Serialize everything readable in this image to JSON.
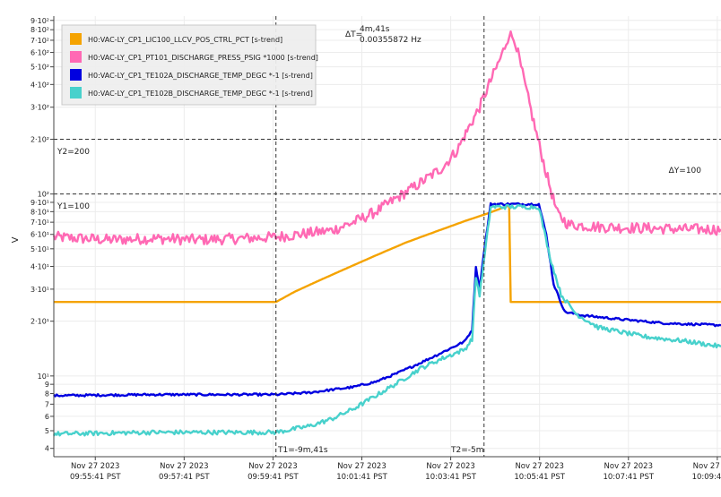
{
  "chart_data": {
    "type": "line",
    "ylabel": "V",
    "y_scale": "log",
    "ylim": [
      3.6,
      950
    ],
    "x_unit": "time (PST, 2023-11-27)",
    "xlim": [
      "09:54:45",
      "10:09:46"
    ],
    "y_ticks": [
      {
        "value": 4,
        "label": "4"
      },
      {
        "value": 5,
        "label": "5"
      },
      {
        "value": 6,
        "label": "6"
      },
      {
        "value": 7,
        "label": "7"
      },
      {
        "value": 8,
        "label": "8"
      },
      {
        "value": 9,
        "label": "9"
      },
      {
        "value": 10,
        "label": "10¹"
      },
      {
        "value": 20,
        "label": "2·10¹"
      },
      {
        "value": 30,
        "label": "3·10¹"
      },
      {
        "value": 40,
        "label": "4·10¹"
      },
      {
        "value": 50,
        "label": "5·10¹"
      },
      {
        "value": 60,
        "label": "6·10¹"
      },
      {
        "value": 70,
        "label": "7·10¹"
      },
      {
        "value": 80,
        "label": "8·10¹"
      },
      {
        "value": 90,
        "label": "9·10¹"
      },
      {
        "value": 100,
        "label": "10²"
      },
      {
        "value": 200,
        "label": "2·10²"
      },
      {
        "value": 300,
        "label": "3·10²"
      },
      {
        "value": 400,
        "label": "4·10²"
      },
      {
        "value": 500,
        "label": "5·10²"
      },
      {
        "value": 600,
        "label": "6·10²"
      },
      {
        "value": 700,
        "label": "7·10²"
      },
      {
        "value": 800,
        "label": "8·10²"
      },
      {
        "value": 900,
        "label": "9·10²"
      }
    ],
    "x_ticks": [
      {
        "time": "09:55:41",
        "date": "Nov 27 2023",
        "label": "09:55:41 PST"
      },
      {
        "time": "09:57:41",
        "date": "Nov 27 2023",
        "label": "09:57:41 PST"
      },
      {
        "time": "09:59:41",
        "date": "Nov 27 2023",
        "label": "09:59:41 PST"
      },
      {
        "time": "10:01:41",
        "date": "Nov 27 2023",
        "label": "10:01:41 PST"
      },
      {
        "time": "10:03:41",
        "date": "Nov 27 2023",
        "label": "10:03:41 PST"
      },
      {
        "time": "10:05:41",
        "date": "Nov 27 2023",
        "label": "10:05:41 PST"
      },
      {
        "time": "10:07:41",
        "date": "Nov 27 2023",
        "label": "10:07:41 PST"
      },
      {
        "time": "10:09:41",
        "date": "Nov 27 2023",
        "label": "10:09:41 PST"
      }
    ],
    "legend_position": "top-left",
    "series": [
      {
        "name": "H0:VAC-LY_CP1_LIC100_LLCV_POS_CTRL_PCT [s-trend]",
        "color": "#f5a300",
        "noise": 0,
        "points": [
          [
            "09:54:45",
            25.5
          ],
          [
            "09:59:45",
            25.5
          ],
          [
            "10:00:10",
            29
          ],
          [
            "10:00:40",
            33
          ],
          [
            "10:01:20",
            39
          ],
          [
            "10:02:00",
            46
          ],
          [
            "10:02:40",
            54
          ],
          [
            "10:03:20",
            62
          ],
          [
            "10:04:00",
            71
          ],
          [
            "10:04:30",
            78
          ],
          [
            "10:04:58",
            86
          ],
          [
            "10:05:00",
            86
          ],
          [
            "10:05:02",
            25.5
          ],
          [
            "10:09:46",
            25.5
          ]
        ]
      },
      {
        "name": "H0:VAC-LY_CP1_PT101_DISCHARGE_PRESS_PSIG *1000 [s-trend]",
        "color": "#ff69b4",
        "noise": 0.03,
        "points": [
          [
            "09:54:45",
            58
          ],
          [
            "09:56:00",
            56
          ],
          [
            "09:57:00",
            57
          ],
          [
            "09:58:00",
            56
          ],
          [
            "09:59:00",
            57
          ],
          [
            "09:59:45",
            58
          ],
          [
            "10:00:30",
            61
          ],
          [
            "10:01:00",
            63
          ],
          [
            "10:01:30",
            70
          ],
          [
            "10:02:00",
            80
          ],
          [
            "10:02:30",
            96
          ],
          [
            "10:03:00",
            115
          ],
          [
            "10:03:30",
            140
          ],
          [
            "10:03:50",
            175
          ],
          [
            "10:04:05",
            230
          ],
          [
            "10:04:20",
            300
          ],
          [
            "10:04:35",
            420
          ],
          [
            "10:04:50",
            580
          ],
          [
            "10:05:00",
            760
          ],
          [
            "10:05:08",
            700
          ],
          [
            "10:05:20",
            420
          ],
          [
            "10:05:35",
            230
          ],
          [
            "10:05:50",
            130
          ],
          [
            "10:06:05",
            78
          ],
          [
            "10:06:20",
            68
          ],
          [
            "10:07:00",
            66
          ],
          [
            "10:08:00",
            65
          ],
          [
            "10:09:00",
            64
          ],
          [
            "10:09:46",
            64
          ]
        ]
      },
      {
        "name": "H0:VAC-LY_CP1_TE102A_DISCHARGE_TEMP_DEGC *-1 [s-trend]",
        "color": "#0000e0",
        "noise": 0.006,
        "points": [
          [
            "09:54:45",
            7.8
          ],
          [
            "09:57:00",
            7.9
          ],
          [
            "09:59:45",
            7.9
          ],
          [
            "10:00:30",
            8.1
          ],
          [
            "10:01:30",
            8.7
          ],
          [
            "10:02:00",
            9.3
          ],
          [
            "10:02:30",
            10.4
          ],
          [
            "10:03:00",
            11.8
          ],
          [
            "10:03:30",
            13.5
          ],
          [
            "10:04:00",
            15.5
          ],
          [
            "10:04:10",
            18
          ],
          [
            "10:04:15",
            40
          ],
          [
            "10:04:20",
            30
          ],
          [
            "10:04:25",
            45
          ],
          [
            "10:04:35",
            88
          ],
          [
            "10:05:00",
            88
          ],
          [
            "10:05:30",
            88
          ],
          [
            "10:05:40",
            88
          ],
          [
            "10:05:50",
            60
          ],
          [
            "10:06:00",
            32
          ],
          [
            "10:06:15",
            22.5
          ],
          [
            "10:06:40",
            21.5
          ],
          [
            "10:07:30",
            20.5
          ],
          [
            "10:08:30",
            19.5
          ],
          [
            "10:09:46",
            19
          ]
        ]
      },
      {
        "name": "H0:VAC-LY_CP1_TE102B_DISCHARGE_TEMP_DEGC *-1 [s-trend]",
        "color": "#48d1cc",
        "noise": 0.012,
        "points": [
          [
            "09:54:45",
            4.8
          ],
          [
            "09:57:00",
            4.9
          ],
          [
            "09:59:45",
            4.9
          ],
          [
            "10:00:30",
            5.3
          ],
          [
            "10:01:00",
            5.8
          ],
          [
            "10:01:30",
            6.6
          ],
          [
            "10:02:00",
            7.8
          ],
          [
            "10:02:30",
            9.2
          ],
          [
            "10:03:00",
            11
          ],
          [
            "10:03:30",
            12.5
          ],
          [
            "10:04:00",
            14
          ],
          [
            "10:04:10",
            16
          ],
          [
            "10:04:15",
            35
          ],
          [
            "10:04:20",
            28
          ],
          [
            "10:04:25",
            40
          ],
          [
            "10:04:35",
            85
          ],
          [
            "10:05:00",
            85
          ],
          [
            "10:05:30",
            85
          ],
          [
            "10:05:40",
            85
          ],
          [
            "10:05:55",
            45
          ],
          [
            "10:06:10",
            28
          ],
          [
            "10:06:30",
            22
          ],
          [
            "10:07:00",
            18.5
          ],
          [
            "10:08:00",
            16.5
          ],
          [
            "10:09:00",
            15.5
          ],
          [
            "10:09:46",
            14.5
          ]
        ]
      }
    ],
    "cursors": {
      "t1": {
        "time": "09:59:45",
        "label": "T1=-9m,41s"
      },
      "t2": {
        "time": "10:04:26",
        "label": "T2=-5m"
      },
      "y1": {
        "value": 100,
        "label": "Y1=100"
      },
      "y2": {
        "value": 200,
        "label": "Y2=200"
      },
      "delta_t": {
        "prefix": "ΔT=",
        "value": "4m,41s",
        "freq": "0.00355872 Hz"
      },
      "delta_y": {
        "label": "ΔY=100"
      }
    }
  }
}
